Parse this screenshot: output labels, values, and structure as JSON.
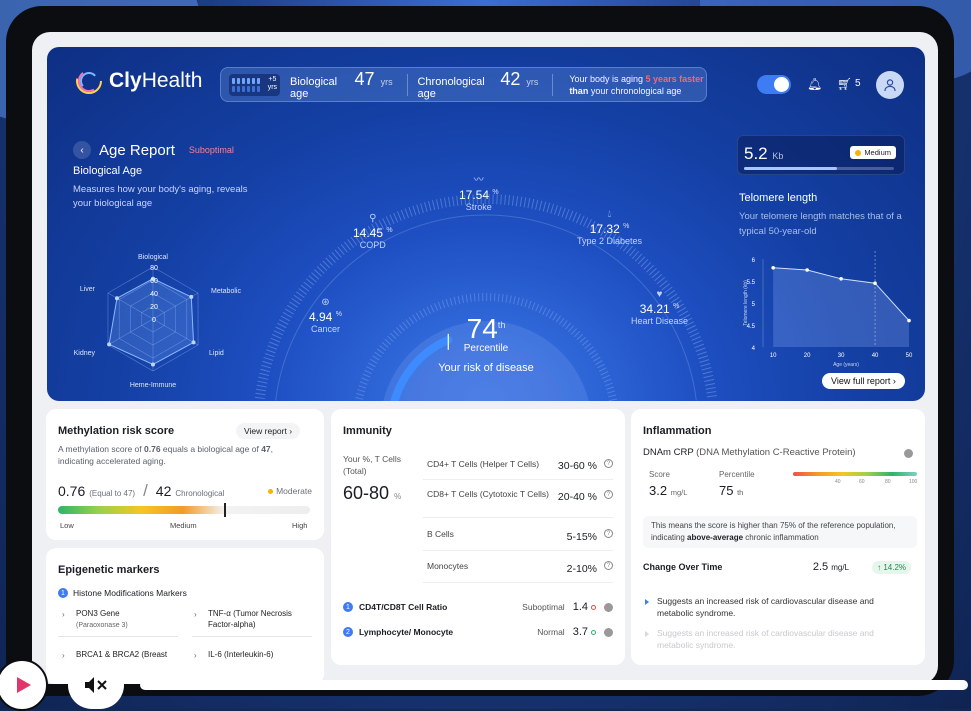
{
  "app": {
    "brand_bold": "Cly",
    "brand_light": "Health"
  },
  "header": {
    "meter_badge_top": "+5",
    "meter_badge_bottom": "yrs",
    "bio_age_label": "Biological age",
    "bio_age_value": "47",
    "bio_age_unit": "yrs",
    "chrono_age_label": "Chronological age",
    "chrono_age_value": "42",
    "chrono_age_unit": "yrs",
    "msg_pre": "Your body is aging ",
    "msg_highlight": "5 years faster",
    "msg_bold": "than",
    "msg_post": " your chronological age",
    "cart_count": "5",
    "icons": [
      "moon-icon",
      "bell-icon",
      "cart-icon",
      "user-icon"
    ]
  },
  "report": {
    "back_icon": "chevron-left-icon",
    "title": "Age Report",
    "status": "Suboptimal",
    "bio_title": "Biological Age",
    "bio_desc": "Measures how your body's aging, reveals your biological age"
  },
  "radar": {
    "axes": [
      "Biological",
      "Metabolic",
      "Lipid",
      "Heme-Immune",
      "Kidney",
      "Liver"
    ],
    "scale": [
      "80",
      "60",
      "40",
      "20",
      "0"
    ],
    "values": [
      62,
      68,
      72,
      70,
      78,
      64
    ]
  },
  "risk": {
    "items": [
      {
        "name": "Stroke",
        "value": "17.54",
        "unit": "%",
        "icon": "pulse-icon"
      },
      {
        "name": "COPD",
        "value": "14.45",
        "unit": "%",
        "icon": "lungs-icon"
      },
      {
        "name": "Type 2 Diabetes",
        "value": "17.32",
        "unit": "%",
        "icon": "drop-icon"
      },
      {
        "name": "Cancer",
        "value": "4.94",
        "unit": "%",
        "icon": "cell-icon"
      },
      {
        "name": "Heart Disease",
        "value": "34.21",
        "unit": "%",
        "icon": "heart-pulse-icon"
      }
    ],
    "percentile_value": "74",
    "percentile_suffix": "th",
    "percentile_label": "Percentile",
    "risk_label": "Your risk of disease",
    "gauge_fraction": 0.74
  },
  "telomere": {
    "value": "5.2",
    "unit": "Kb",
    "badge": "Medium",
    "level_fraction": 0.62,
    "title": "Telomere length",
    "desc": "Your telomere length matches that of a typical 50-year-old",
    "view_full": "View full report",
    "colors": {
      "badge_dot": "#f4b400"
    }
  },
  "chart_data": {
    "type": "line",
    "title": "",
    "xlabel": "Age (years)",
    "ylabel": "Telomere length (kb)",
    "x": [
      10,
      20,
      30,
      40,
      50
    ],
    "xticks": [
      "10",
      "20",
      "30",
      "40",
      "50"
    ],
    "yticks": [
      "4",
      "4.5",
      "5",
      "5.5",
      "6"
    ],
    "ylim": [
      4,
      6
    ],
    "xlim": [
      7,
      50
    ],
    "series": [
      {
        "x": [
          10,
          20,
          30,
          40,
          50
        ],
        "values": [
          5.8,
          5.75,
          5.55,
          5.45,
          4.6
        ]
      }
    ],
    "highlight_x": 40,
    "grid": false
  },
  "methylation": {
    "title": "Methylation risk score",
    "view_report": "View report",
    "desc_pre": "A methylation score of ",
    "desc_val": "0.76",
    "desc_mid": " equals a biological age of ",
    "desc_age": "47",
    "desc_post": ", indicating accelerated aging.",
    "score": "0.76",
    "score_note": "(Equal to 47)",
    "chrono": "42",
    "chrono_label": "Chronological",
    "status": "Moderate",
    "marker_fraction": 0.66,
    "scale": [
      "Low",
      "Medium",
      "High"
    ]
  },
  "epigenetic": {
    "title": "Epigenetic markers",
    "section_num": "1",
    "section_title": "Histone Modifications Markers",
    "items": [
      {
        "name": "PON3 Gene",
        "sub": "(Paraoxonase 3)"
      },
      {
        "name": "TNF-α (Tumor Necrosis Factor-alpha)",
        "sub": ""
      },
      {
        "name": "BRCA1 & BRCA2 (Breast",
        "sub": ""
      },
      {
        "name": "IL-6 (Interleukin-6)",
        "sub": ""
      }
    ]
  },
  "immunity": {
    "title": "Immunity",
    "your_label": "Your %, T Cells (Total)",
    "total_value": "60-80",
    "total_unit": "%",
    "rows": [
      {
        "name": "CD4+ T Cells (Helper T Cells)",
        "value": "30-60 %"
      },
      {
        "name": "CD8+ T Cells (Cytotoxic T Cells)",
        "value": "20-40 %"
      },
      {
        "name": "B Cells",
        "value": "5-15%"
      },
      {
        "name": "Monocytes",
        "value": "2-10%"
      }
    ],
    "ratios": [
      {
        "num": "1",
        "name": "CD4T/CD8T Cell Ratio",
        "status": "Suboptimal",
        "value": "1.4"
      },
      {
        "num": "2",
        "name": "Lymphocyte/ Monocyte",
        "status": "Normal",
        "value": "3.7"
      }
    ]
  },
  "inflammation": {
    "title": "Inflammation",
    "sub_main": "DNAm CRP",
    "sub_paren": "(DNA Methylation C-Reactive Protein)",
    "score_label": "Score",
    "score_value": "3.2",
    "score_unit": "mg/L",
    "pct_label": "Percentile",
    "pct_value": "75",
    "pct_unit": "th",
    "bar_ticks": [
      "40",
      "60",
      "80",
      "100"
    ],
    "note_pre": "This means the score is higher than 75% of the reference population, indicating ",
    "note_bold": "above-average",
    "note_post": " chronic inflammation",
    "change_title": "Change Over Time",
    "change_value": "2.5",
    "change_unit": "mg/L",
    "change_pill": "↑ 14.2%",
    "points": [
      "Suggests an increased risk of cardiovascular disease and metabolic syndrome.",
      "Suggests an increased risk of cardiovascular disease and metabolic syndrome."
    ]
  },
  "player": {
    "play_icon": "play-icon",
    "mute_icon": "mute-icon"
  }
}
